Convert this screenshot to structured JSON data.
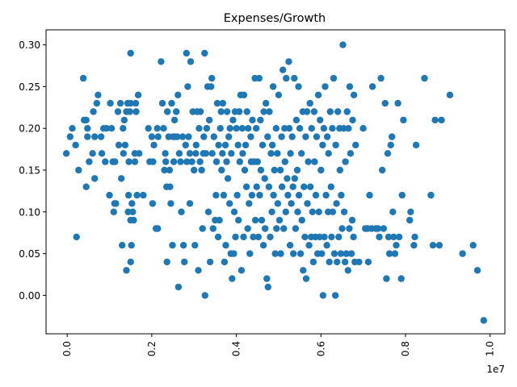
{
  "chart_data": {
    "type": "scatter",
    "title": "Expenses/Growth",
    "xlabel": "",
    "ylabel": "",
    "x_offset_label": "1e7",
    "xlim": [
      -0.05,
      1.035
    ],
    "ylim": [
      -0.046,
      0.318
    ],
    "x_ticks": [
      {
        "value": 0.0,
        "label": "0.0"
      },
      {
        "value": 0.2,
        "label": "0.2"
      },
      {
        "value": 0.4,
        "label": "0.4"
      },
      {
        "value": 0.6,
        "label": "0.6"
      },
      {
        "value": 0.8,
        "label": "0.8"
      },
      {
        "value": 1.0,
        "label": "1.0"
      }
    ],
    "y_ticks": [
      {
        "value": 0.0,
        "label": "0.00"
      },
      {
        "value": 0.05,
        "label": "0.05"
      },
      {
        "value": 0.1,
        "label": "0.10"
      },
      {
        "value": 0.15,
        "label": "0.15"
      },
      {
        "value": 0.2,
        "label": "0.20"
      },
      {
        "value": 0.25,
        "label": "0.25"
      },
      {
        "value": 0.3,
        "label": "0.30"
      }
    ],
    "grid": false,
    "marker_color": "#1f77b4",
    "points": [
      [
        -0.002,
        0.17
      ],
      [
        0.007,
        0.19
      ],
      [
        0.012,
        0.2
      ],
      [
        0.02,
        0.18
      ],
      [
        0.022,
        0.07
      ],
      [
        0.027,
        0.15
      ],
      [
        0.038,
        0.26
      ],
      [
        0.04,
        0.21
      ],
      [
        0.045,
        0.21
      ],
      [
        0.045,
        0.13
      ],
      [
        0.048,
        0.2
      ],
      [
        0.048,
        0.19
      ],
      [
        0.052,
        0.16
      ],
      [
        0.06,
        0.17
      ],
      [
        0.062,
        0.22
      ],
      [
        0.065,
        0.14
      ],
      [
        0.065,
        0.19
      ],
      [
        0.07,
        0.23
      ],
      [
        0.073,
        0.24
      ],
      [
        0.08,
        0.19
      ],
      [
        0.082,
        0.17
      ],
      [
        0.086,
        0.2
      ],
      [
        0.09,
        0.16
      ],
      [
        0.093,
        0.2
      ],
      [
        0.1,
        0.12
      ],
      [
        0.102,
        0.23
      ],
      [
        0.105,
        0.2
      ],
      [
        0.108,
        0.16
      ],
      [
        0.11,
        0.1
      ],
      [
        0.112,
        0.11
      ],
      [
        0.113,
        0.16
      ],
      [
        0.115,
        0.11
      ],
      [
        0.12,
        0.22
      ],
      [
        0.122,
        0.18
      ],
      [
        0.126,
        0.23
      ],
      [
        0.128,
        0.14
      ],
      [
        0.13,
        0.06
      ],
      [
        0.132,
        0.2
      ],
      [
        0.133,
        0.17
      ],
      [
        0.135,
        0.21
      ],
      [
        0.137,
        0.18
      ],
      [
        0.14,
        0.03
      ],
      [
        0.14,
        0.22
      ],
      [
        0.143,
        0.23
      ],
      [
        0.144,
        0.1
      ],
      [
        0.145,
        0.12
      ],
      [
        0.146,
        0.16
      ],
      [
        0.148,
        0.22
      ],
      [
        0.15,
        0.29
      ],
      [
        0.15,
        0.09
      ],
      [
        0.15,
        0.23
      ],
      [
        0.15,
        0.04
      ],
      [
        0.152,
        0.06
      ],
      [
        0.153,
        0.11
      ],
      [
        0.155,
        0.1
      ],
      [
        0.157,
        0.09
      ],
      [
        0.16,
        0.16
      ],
      [
        0.16,
        0.17
      ],
      [
        0.162,
        0.23
      ],
      [
        0.163,
        0.22
      ],
      [
        0.165,
        0.12
      ],
      [
        0.168,
        0.24
      ],
      [
        0.17,
        0.17
      ],
      [
        0.18,
        0.12
      ],
      [
        0.192,
        0.2
      ],
      [
        0.195,
        0.16
      ],
      [
        0.2,
        0.19
      ],
      [
        0.202,
        0.11
      ],
      [
        0.203,
        0.16
      ],
      [
        0.205,
        0.18
      ],
      [
        0.21,
        0.08
      ],
      [
        0.213,
        0.2
      ],
      [
        0.214,
        0.08
      ],
      [
        0.215,
        0.19
      ],
      [
        0.222,
        0.28
      ],
      [
        0.225,
        0.23
      ],
      [
        0.228,
        0.2
      ],
      [
        0.23,
        0.15
      ],
      [
        0.232,
        0.17
      ],
      [
        0.233,
        0.16
      ],
      [
        0.235,
        0.13
      ],
      [
        0.236,
        0.04
      ],
      [
        0.237,
        0.22
      ],
      [
        0.24,
        0.19
      ],
      [
        0.242,
        0.15
      ],
      [
        0.243,
        0.13
      ],
      [
        0.245,
        0.11
      ],
      [
        0.247,
        0.23
      ],
      [
        0.249,
        0.06
      ],
      [
        0.25,
        0.19
      ],
      [
        0.252,
        0.16
      ],
      [
        0.254,
        0.21
      ],
      [
        0.255,
        0.19
      ],
      [
        0.258,
        0.22
      ],
      [
        0.26,
        0.19
      ],
      [
        0.262,
        0.24
      ],
      [
        0.263,
        0.01
      ],
      [
        0.265,
        0.17
      ],
      [
        0.268,
        0.16
      ],
      [
        0.27,
        0.1
      ],
      [
        0.273,
        0.19
      ],
      [
        0.275,
        0.06
      ],
      [
        0.277,
        0.04
      ],
      [
        0.28,
        0.18
      ],
      [
        0.282,
        0.29
      ],
      [
        0.283,
        0.16
      ],
      [
        0.285,
        0.25
      ],
      [
        0.287,
        0.19
      ],
      [
        0.29,
        0.11
      ],
      [
        0.29,
        0.17
      ],
      [
        0.292,
        0.28
      ],
      [
        0.295,
        0.16
      ],
      [
        0.297,
        0.22
      ],
      [
        0.3,
        0.15
      ],
      [
        0.302,
        0.06
      ],
      [
        0.304,
        0.17
      ],
      [
        0.305,
        0.18
      ],
      [
        0.307,
        0.22
      ],
      [
        0.31,
        0.03
      ],
      [
        0.312,
        0.2
      ],
      [
        0.314,
        0.16
      ],
      [
        0.315,
        0.22
      ],
      [
        0.318,
        0.15
      ],
      [
        0.32,
        0.08
      ],
      [
        0.322,
        0.17
      ],
      [
        0.323,
        0.19
      ],
      [
        0.325,
        0.29
      ],
      [
        0.326,
        0.0
      ],
      [
        0.328,
        0.17
      ],
      [
        0.33,
        0.2
      ],
      [
        0.332,
        0.25
      ],
      [
        0.334,
        0.1
      ],
      [
        0.336,
        0.21
      ],
      [
        0.338,
        0.04
      ],
      [
        0.34,
        0.25
      ],
      [
        0.342,
        0.26
      ],
      [
        0.343,
        0.17
      ],
      [
        0.345,
        0.08
      ],
      [
        0.347,
        0.19
      ],
      [
        0.35,
        0.09
      ],
      [
        0.352,
        0.12
      ],
      [
        0.353,
        0.16
      ],
      [
        0.355,
        0.23
      ],
      [
        0.357,
        0.07
      ],
      [
        0.358,
        0.18
      ],
      [
        0.36,
        0.09
      ],
      [
        0.362,
        0.2
      ],
      [
        0.364,
        0.22
      ],
      [
        0.365,
        0.15
      ],
      [
        0.367,
        0.17
      ],
      [
        0.368,
        0.23
      ],
      [
        0.37,
        0.12
      ],
      [
        0.372,
        0.04
      ],
      [
        0.374,
        0.18
      ],
      [
        0.375,
        0.06
      ],
      [
        0.377,
        0.16
      ],
      [
        0.378,
        0.22
      ],
      [
        0.38,
        0.14
      ],
      [
        0.382,
        0.19
      ],
      [
        0.384,
        0.11
      ],
      [
        0.385,
        0.2
      ],
      [
        0.387,
        0.05
      ],
      [
        0.388,
        0.17
      ],
      [
        0.39,
        0.02
      ],
      [
        0.392,
        0.21
      ],
      [
        0.394,
        0.05
      ],
      [
        0.395,
        0.1
      ],
      [
        0.397,
        0.22
      ],
      [
        0.398,
        0.07
      ],
      [
        0.4,
        0.2
      ],
      [
        0.402,
        0.12
      ],
      [
        0.404,
        0.18
      ],
      [
        0.405,
        0.09
      ],
      [
        0.407,
        0.22
      ],
      [
        0.408,
        0.16
      ],
      [
        0.41,
        0.24
      ],
      [
        0.412,
        0.03
      ],
      [
        0.414,
        0.2
      ],
      [
        0.415,
        0.17
      ],
      [
        0.417,
        0.07
      ],
      [
        0.418,
        0.24
      ],
      [
        0.42,
        0.15
      ],
      [
        0.422,
        0.18
      ],
      [
        0.424,
        0.13
      ],
      [
        0.425,
        0.22
      ],
      [
        0.427,
        0.08
      ],
      [
        0.428,
        0.2
      ],
      [
        0.43,
        0.11
      ],
      [
        0.432,
        0.05
      ],
      [
        0.434,
        0.19
      ],
      [
        0.435,
        0.16
      ],
      [
        0.437,
        0.12
      ],
      [
        0.438,
        0.21
      ],
      [
        0.44,
        0.07
      ],
      [
        0.442,
        0.16
      ],
      [
        0.444,
        0.26
      ],
      [
        0.445,
        0.09
      ],
      [
        0.447,
        0.2
      ],
      [
        0.448,
        0.13
      ],
      [
        0.45,
        0.16
      ],
      [
        0.452,
        0.07
      ],
      [
        0.454,
        0.26
      ],
      [
        0.455,
        0.12
      ],
      [
        0.457,
        0.21
      ],
      [
        0.458,
        0.15
      ],
      [
        0.46,
        0.09
      ],
      [
        0.462,
        0.18
      ],
      [
        0.464,
        0.06
      ],
      [
        0.465,
        0.22
      ],
      [
        0.467,
        0.14
      ],
      [
        0.468,
        0.08
      ],
      [
        0.47,
        0.23
      ],
      [
        0.472,
        0.02
      ],
      [
        0.474,
        0.19
      ],
      [
        0.475,
        0.01
      ],
      [
        0.477,
        0.13
      ],
      [
        0.478,
        0.22
      ],
      [
        0.48,
        0.07
      ],
      [
        0.482,
        0.17
      ],
      [
        0.484,
        0.1
      ],
      [
        0.485,
        0.18
      ],
      [
        0.487,
        0.25
      ],
      [
        0.488,
        0.12
      ],
      [
        0.49,
        0.15
      ],
      [
        0.492,
        0.05
      ],
      [
        0.494,
        0.2
      ],
      [
        0.495,
        0.08
      ],
      [
        0.497,
        0.17
      ],
      [
        0.498,
        0.11
      ],
      [
        0.5,
        0.24
      ],
      [
        0.502,
        0.09
      ],
      [
        0.504,
        0.15
      ],
      [
        0.505,
        0.05
      ],
      [
        0.507,
        0.19
      ],
      [
        0.508,
        0.13
      ],
      [
        0.51,
        0.27
      ],
      [
        0.512,
        0.08
      ],
      [
        0.514,
        0.2
      ],
      [
        0.515,
        0.16
      ],
      [
        0.517,
        0.1
      ],
      [
        0.518,
        0.26
      ],
      [
        0.52,
        0.14
      ],
      [
        0.522,
        0.12
      ],
      [
        0.524,
        0.28
      ],
      [
        0.525,
        0.2
      ],
      [
        0.527,
        0.06
      ],
      [
        0.528,
        0.17
      ],
      [
        0.53,
        0.11
      ],
      [
        0.532,
        0.19
      ],
      [
        0.534,
        0.13
      ],
      [
        0.535,
        0.05
      ],
      [
        0.537,
        0.26
      ],
      [
        0.538,
        0.14
      ],
      [
        0.54,
        0.08
      ],
      [
        0.542,
        0.21
      ],
      [
        0.544,
        0.15
      ],
      [
        0.545,
        0.1
      ],
      [
        0.547,
        0.25
      ],
      [
        0.548,
        0.12
      ],
      [
        0.55,
        0.2
      ],
      [
        0.552,
        0.05
      ],
      [
        0.554,
        0.17
      ],
      [
        0.555,
        0.09
      ],
      [
        0.557,
        0.22
      ],
      [
        0.558,
        0.03
      ],
      [
        0.56,
        0.13
      ],
      [
        0.562,
        0.07
      ],
      [
        0.564,
        0.19
      ],
      [
        0.565,
        0.02
      ],
      [
        0.567,
        0.22
      ],
      [
        0.568,
        0.11
      ],
      [
        0.57,
        0.16
      ],
      [
        0.572,
        0.06
      ],
      [
        0.574,
        0.23
      ],
      [
        0.575,
        0.13
      ],
      [
        0.577,
        0.07
      ],
      [
        0.578,
        0.2
      ],
      [
        0.58,
        0.1
      ],
      [
        0.582,
        0.04
      ],
      [
        0.584,
        0.22
      ],
      [
        0.585,
        0.16
      ],
      [
        0.587,
        0.07
      ],
      [
        0.588,
        0.12
      ],
      [
        0.59,
        0.19
      ],
      [
        0.592,
        0.05
      ],
      [
        0.594,
        0.24
      ],
      [
        0.595,
        0.1
      ],
      [
        0.597,
        0.07
      ],
      [
        0.598,
        0.21
      ],
      [
        0.6,
        0.15
      ],
      [
        0.602,
        0.05
      ],
      [
        0.604,
        0.18
      ],
      [
        0.605,
        0.0
      ],
      [
        0.607,
        0.2
      ],
      [
        0.608,
        0.07
      ],
      [
        0.61,
        0.25
      ],
      [
        0.612,
        0.12
      ],
      [
        0.614,
        0.06
      ],
      [
        0.615,
        0.19
      ],
      [
        0.617,
        0.1
      ],
      [
        0.618,
        0.17
      ],
      [
        0.62,
        0.04
      ],
      [
        0.622,
        0.22
      ],
      [
        0.624,
        0.13
      ],
      [
        0.625,
        0.07
      ],
      [
        0.627,
        0.2
      ],
      [
        0.628,
        0.1
      ],
      [
        0.63,
        0.26
      ],
      [
        0.632,
        0.05
      ],
      [
        0.634,
        0.0
      ],
      [
        0.635,
        0.18
      ],
      [
        0.637,
        0.11
      ],
      [
        0.638,
        0.04
      ],
      [
        0.64,
        0.22
      ],
      [
        0.642,
        0.07
      ],
      [
        0.644,
        0.2
      ],
      [
        0.645,
        0.15
      ],
      [
        0.647,
        0.05
      ],
      [
        0.648,
        0.12
      ],
      [
        0.65,
        0.08
      ],
      [
        0.652,
        0.3
      ],
      [
        0.654,
        0.2
      ],
      [
        0.655,
        0.1
      ],
      [
        0.657,
        0.04
      ],
      [
        0.658,
        0.16
      ],
      [
        0.66,
        0.05
      ],
      [
        0.662,
        0.22
      ],
      [
        0.664,
        0.03
      ],
      [
        0.665,
        0.2
      ],
      [
        0.667,
        0.08
      ],
      [
        0.668,
        0.25
      ],
      [
        0.67,
        0.17
      ],
      [
        0.672,
        0.05
      ],
      [
        0.674,
        0.09
      ],
      [
        0.675,
        0.21
      ],
      [
        0.677,
        0.07
      ],
      [
        0.678,
        0.24
      ],
      [
        0.68,
        0.04
      ],
      [
        0.682,
        0.18
      ],
      [
        0.69,
        0.04
      ],
      [
        0.7,
        0.2
      ],
      [
        0.705,
        0.08
      ],
      [
        0.71,
        0.08
      ],
      [
        0.712,
        0.04
      ],
      [
        0.715,
        0.12
      ],
      [
        0.72,
        0.08
      ],
      [
        0.722,
        0.25
      ],
      [
        0.73,
        0.08
      ],
      [
        0.735,
        0.08
      ],
      [
        0.738,
        0.07
      ],
      [
        0.742,
        0.26
      ],
      [
        0.745,
        0.15
      ],
      [
        0.748,
        0.08
      ],
      [
        0.752,
        0.23
      ],
      [
        0.755,
        0.02
      ],
      [
        0.758,
        0.17
      ],
      [
        0.76,
        0.07
      ],
      [
        0.762,
        0.05
      ],
      [
        0.765,
        0.18
      ],
      [
        0.768,
        0.19
      ],
      [
        0.77,
        0.1
      ],
      [
        0.772,
        0.07
      ],
      [
        0.775,
        0.05
      ],
      [
        0.778,
        0.06
      ],
      [
        0.782,
        0.23
      ],
      [
        0.785,
        0.07
      ],
      [
        0.79,
        0.02
      ],
      [
        0.792,
        0.12
      ],
      [
        0.795,
        0.21
      ],
      [
        0.81,
        0.09
      ],
      [
        0.812,
        0.1
      ],
      [
        0.82,
        0.06
      ],
      [
        0.822,
        0.07
      ],
      [
        0.825,
        0.18
      ],
      [
        0.845,
        0.26
      ],
      [
        0.86,
        0.12
      ],
      [
        0.865,
        0.06
      ],
      [
        0.87,
        0.21
      ],
      [
        0.88,
        0.06
      ],
      [
        0.885,
        0.21
      ],
      [
        0.905,
        0.24
      ],
      [
        0.935,
        0.05
      ],
      [
        0.96,
        0.06
      ],
      [
        0.97,
        0.03
      ],
      [
        0.985,
        -0.03
      ]
    ]
  }
}
